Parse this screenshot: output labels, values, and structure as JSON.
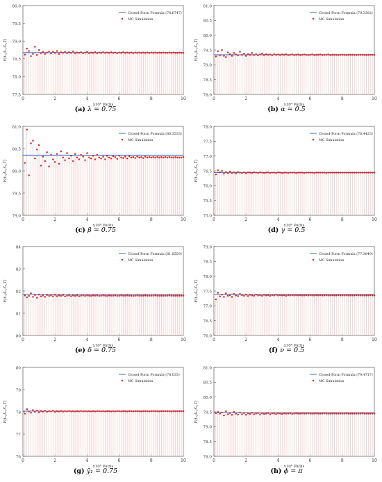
{
  "figure": {
    "xlabel": "x10⁶ Paths",
    "ylabel": "F(t₀,A₀,S₀,T)",
    "legend_line_prefix": "Closed-Form Formula",
    "legend_dots": "MC Simulation",
    "line_color": "#4a78c8",
    "dot_color": "#d42a2a",
    "stem_color": "#e8a6a6",
    "legend_placement": "top-right"
  },
  "chart_data": [
    {
      "type": "scatter",
      "caption": {
        "tag": "(a)",
        "text": "λ = 0.75"
      },
      "closed_form_label": "(78.6747)",
      "closed_form": 78.6747,
      "xlim": [
        0,
        10
      ],
      "xticks": [
        "0",
        "2",
        "4",
        "6",
        "8",
        "10"
      ],
      "ylim": [
        77.5,
        80.0
      ],
      "yticks": [
        "77.5",
        "78.0",
        "78.5",
        "79.0",
        "79.5",
        "80.0"
      ],
      "mc_values": [
        78.62,
        78.79,
        78.72,
        78.58,
        78.64,
        78.84,
        78.61,
        78.75,
        78.66,
        78.7,
        78.64,
        78.68,
        78.71,
        78.65,
        78.7,
        78.67,
        78.72,
        78.64,
        78.69,
        78.67,
        78.7,
        78.66,
        78.69,
        78.67,
        78.71,
        78.66,
        78.68,
        78.67,
        78.69,
        78.66,
        78.68,
        78.7,
        78.66,
        78.68,
        78.67,
        78.69,
        78.66,
        78.68,
        78.67,
        78.69,
        78.67,
        78.68,
        78.67,
        78.69,
        78.67,
        78.68,
        78.66,
        78.68,
        78.67,
        78.69,
        78.67,
        78.68,
        78.67,
        78.68,
        78.66,
        78.68,
        78.67,
        78.68,
        78.67,
        78.68,
        78.67,
        78.68,
        78.67,
        78.68,
        78.67,
        78.68,
        78.67,
        78.68,
        78.67,
        78.68,
        78.67,
        78.67,
        78.68,
        78.67,
        78.68,
        78.67,
        78.67,
        78.68,
        78.67,
        78.67
      ]
    },
    {
      "type": "scatter",
      "caption": {
        "tag": "(b)",
        "text": "α = 0.5"
      },
      "closed_form_label": "(79.3382)",
      "closed_form": 79.3382,
      "xlim": [
        0,
        10
      ],
      "xticks": [
        "0",
        "2",
        "4",
        "6",
        "8",
        "10"
      ],
      "ylim": [
        78.0,
        81.0
      ],
      "yticks": [
        "78.0",
        "78.5",
        "79.0",
        "79.5",
        "80.0",
        "80.5",
        "81.0"
      ],
      "mc_values": [
        79.28,
        79.46,
        79.32,
        79.5,
        79.3,
        79.26,
        79.42,
        79.36,
        79.3,
        79.4,
        79.35,
        79.32,
        79.44,
        79.34,
        79.38,
        79.3,
        79.36,
        79.34,
        79.4,
        79.33,
        79.36,
        79.32,
        79.35,
        79.38,
        79.33,
        79.36,
        79.34,
        79.35,
        79.32,
        79.36,
        79.34,
        79.35,
        79.33,
        79.35,
        79.34,
        79.36,
        79.33,
        79.34,
        79.35,
        79.33,
        79.34,
        79.35,
        79.33,
        79.34,
        79.35,
        79.34,
        79.33,
        79.34,
        79.35,
        79.33,
        79.34,
        79.34,
        79.35,
        79.33,
        79.34,
        79.34,
        79.35,
        79.33,
        79.34,
        79.34,
        79.34,
        79.33,
        79.34,
        79.34,
        79.34,
        79.33,
        79.34,
        79.34,
        79.34,
        79.34,
        79.33,
        79.34,
        79.34,
        79.34,
        79.34,
        79.33,
        79.34,
        79.34,
        79.34,
        79.34
      ]
    },
    {
      "type": "scatter",
      "caption": {
        "tag": "(c)",
        "text": "β = 0.75"
      },
      "closed_form_label": "(80.3533)",
      "closed_form": 80.3533,
      "xlim": [
        0,
        10
      ],
      "xticks": [
        "0",
        "2",
        "4",
        "6",
        "8",
        "10"
      ],
      "ylim": [
        79.0,
        81.0
      ],
      "yticks": [
        "79.0",
        "79.5",
        "80.0",
        "80.5",
        "81.0"
      ],
      "mc_values": [
        80.18,
        80.93,
        79.9,
        80.62,
        80.68,
        80.28,
        80.48,
        80.58,
        80.12,
        80.32,
        80.22,
        80.42,
        80.1,
        80.36,
        80.26,
        80.2,
        80.38,
        80.16,
        80.44,
        80.3,
        80.24,
        80.4,
        80.28,
        80.34,
        80.22,
        80.38,
        80.3,
        80.26,
        80.36,
        80.32,
        80.24,
        80.4,
        80.3,
        80.28,
        80.34,
        80.26,
        80.36,
        80.3,
        80.28,
        80.32,
        80.26,
        80.34,
        80.3,
        80.28,
        80.33,
        80.31,
        80.27,
        80.34,
        80.3,
        80.29,
        80.32,
        80.28,
        80.33,
        80.3,
        80.31,
        80.29,
        80.32,
        80.3,
        80.31,
        80.29,
        80.32,
        80.3,
        80.31,
        80.3,
        80.31,
        80.3,
        80.31,
        80.3,
        80.31,
        80.3,
        80.31,
        80.3,
        80.31,
        80.3,
        80.3,
        80.31,
        80.3,
        80.3,
        80.3,
        80.31
      ]
    },
    {
      "type": "scatter",
      "caption": {
        "tag": "(d)",
        "text": "γ = 0.5"
      },
      "closed_form_label": "(76.4423)",
      "closed_form": 76.4423,
      "xlim": [
        0,
        10
      ],
      "xticks": [
        "0",
        "2",
        "4",
        "6",
        "8",
        "10"
      ],
      "ylim": [
        75.0,
        78.0
      ],
      "yticks": [
        "75.0",
        "75.5",
        "76.0",
        "76.5",
        "77.0",
        "77.5",
        "78.0"
      ],
      "mc_values": [
        76.38,
        76.52,
        76.45,
        76.5,
        76.4,
        76.46,
        76.42,
        76.48,
        76.43,
        76.45,
        76.41,
        76.46,
        76.44,
        76.43,
        76.45,
        76.42,
        76.45,
        76.44,
        76.43,
        76.45,
        76.44,
        76.43,
        76.45,
        76.44,
        76.43,
        76.44,
        76.45,
        76.43,
        76.44,
        76.44,
        76.43,
        76.45,
        76.44,
        76.43,
        76.44,
        76.44,
        76.43,
        76.44,
        76.44,
        76.44,
        76.43,
        76.44,
        76.44,
        76.44,
        76.43,
        76.44,
        76.44,
        76.44,
        76.44,
        76.43,
        76.44,
        76.44,
        76.44,
        76.44,
        76.44,
        76.43,
        76.44,
        76.44,
        76.44,
        76.44,
        76.44,
        76.44,
        76.44,
        76.44,
        76.44,
        76.44,
        76.44,
        76.44,
        76.44,
        76.44,
        76.44,
        76.44,
        76.44,
        76.44,
        76.44,
        76.44,
        76.44,
        76.44,
        76.44,
        76.44
      ]
    },
    {
      "type": "scatter",
      "caption": {
        "tag": "(e)",
        "text": "δ = 0.75"
      },
      "closed_form_label": "(81.8559)",
      "closed_form": 81.8559,
      "xlim": [
        0,
        10
      ],
      "xticks": [
        "0",
        "2",
        "4",
        "6",
        "8",
        "10"
      ],
      "ylim": [
        80,
        84
      ],
      "yticks": [
        "80",
        "81",
        "82",
        "83",
        "84"
      ],
      "mc_values": [
        81.8,
        81.72,
        81.78,
        81.9,
        81.74,
        81.82,
        81.7,
        81.84,
        81.76,
        81.8,
        81.74,
        81.82,
        81.78,
        81.8,
        81.76,
        81.83,
        81.77,
        81.8,
        81.78,
        81.82,
        81.76,
        81.79,
        81.81,
        81.77,
        81.8,
        81.78,
        81.81,
        81.77,
        81.79,
        81.8,
        81.78,
        81.8,
        81.79,
        81.78,
        81.8,
        81.79,
        81.8,
        81.78,
        81.79,
        81.8,
        81.79,
        81.78,
        81.8,
        81.79,
        81.79,
        81.8,
        81.78,
        81.79,
        81.8,
        81.79,
        81.79,
        81.8,
        81.79,
        81.79,
        81.78,
        81.79,
        81.8,
        81.79,
        81.79,
        81.79,
        81.8,
        81.79,
        81.79,
        81.79,
        81.79,
        81.8,
        81.79,
        81.79,
        81.79,
        81.79,
        81.79,
        81.79,
        81.8,
        81.79,
        81.79,
        81.79,
        81.79,
        81.79,
        81.79,
        81.79
      ]
    },
    {
      "type": "scatter",
      "caption": {
        "tag": "(f)",
        "text": "ν = 0.5"
      },
      "closed_form_label": "(77.3849)",
      "closed_form": 77.3849,
      "xlim": [
        0,
        10
      ],
      "xticks": [
        "0",
        "2",
        "4",
        "6",
        "8",
        "10"
      ],
      "ylim": [
        76.0,
        79.0
      ],
      "yticks": [
        "76.0",
        "76.5",
        "77.0",
        "77.5",
        "78.0",
        "78.5",
        "79.0"
      ],
      "mc_values": [
        77.22,
        77.44,
        77.32,
        77.38,
        77.3,
        77.42,
        77.34,
        77.36,
        77.3,
        77.4,
        77.35,
        77.33,
        77.4,
        77.36,
        77.34,
        77.38,
        77.33,
        77.37,
        77.35,
        77.34,
        77.38,
        77.35,
        77.36,
        77.34,
        77.37,
        77.35,
        77.36,
        77.34,
        77.36,
        77.35,
        77.37,
        77.35,
        77.36,
        77.35,
        77.36,
        77.34,
        77.36,
        77.35,
        77.36,
        77.35,
        77.36,
        77.35,
        77.36,
        77.35,
        77.35,
        77.36,
        77.35,
        77.36,
        77.35,
        77.35,
        77.36,
        77.35,
        77.36,
        77.35,
        77.35,
        77.36,
        77.35,
        77.35,
        77.36,
        77.35,
        77.35,
        77.36,
        77.35,
        77.35,
        77.35,
        77.36,
        77.35,
        77.35,
        77.35,
        77.35,
        77.36,
        77.35,
        77.35,
        77.35,
        77.35,
        77.35,
        77.35,
        77.36,
        77.35,
        77.35
      ]
    },
    {
      "type": "scatter",
      "caption": {
        "tag": "(g)",
        "text": "ȳ₁ = 0.75"
      },
      "closed_form_label": "(78.033)",
      "closed_form": 78.033,
      "xlim": [
        0,
        10
      ],
      "xticks": [
        "0",
        "2",
        "4",
        "6",
        "8",
        "10"
      ],
      "ylim": [
        76,
        80
      ],
      "yticks": [
        "76",
        "77",
        "78",
        "79",
        "80"
      ],
      "mc_values": [
        77.92,
        78.12,
        78.02,
        77.96,
        78.08,
        78.0,
        78.06,
        77.98,
        78.04,
        78.01,
        78.05,
        78.0,
        78.03,
        78.02,
        78.05,
        78.0,
        78.03,
        78.02,
        78.04,
        78.01,
        78.03,
        78.02,
        78.04,
        78.02,
        78.03,
        78.02,
        78.03,
        78.02,
        78.04,
        78.02,
        78.03,
        78.02,
        78.03,
        78.02,
        78.03,
        78.02,
        78.03,
        78.03,
        78.02,
        78.03,
        78.02,
        78.03,
        78.03,
        78.02,
        78.03,
        78.02,
        78.03,
        78.03,
        78.02,
        78.03,
        78.03,
        78.02,
        78.03,
        78.03,
        78.02,
        78.03,
        78.03,
        78.03,
        78.02,
        78.03,
        78.03,
        78.03,
        78.02,
        78.03,
        78.03,
        78.03,
        78.03,
        78.02,
        78.03,
        78.03,
        78.03,
        78.03,
        78.03,
        78.02,
        78.03,
        78.03,
        78.03,
        78.03,
        78.03,
        78.03
      ]
    },
    {
      "type": "scatter",
      "caption": {
        "tag": "(h)",
        "text": "ϕ = π"
      },
      "closed_form_label": "(79.4717)",
      "closed_form": 79.4717,
      "xlim": [
        0,
        10
      ],
      "xticks": [
        "0",
        "2",
        "4",
        "6",
        "8",
        "10"
      ],
      "ylim": [
        78.0,
        81.0
      ],
      "yticks": [
        "78.0",
        "78.5",
        "79.0",
        "79.5",
        "80.0",
        "80.5",
        "81.0"
      ],
      "mc_values": [
        79.46,
        79.5,
        79.44,
        79.48,
        79.38,
        79.52,
        79.42,
        79.46,
        79.4,
        79.5,
        79.44,
        79.41,
        79.48,
        79.42,
        79.46,
        79.4,
        79.45,
        79.43,
        79.47,
        79.42,
        79.44,
        79.46,
        79.41,
        79.45,
        79.43,
        79.44,
        79.46,
        79.42,
        79.45,
        79.44,
        79.43,
        79.45,
        79.44,
        79.43,
        79.45,
        79.44,
        79.44,
        79.45,
        79.43,
        79.44,
        79.45,
        79.44,
        79.44,
        79.45,
        79.44,
        79.44,
        79.45,
        79.44,
        79.44,
        79.44,
        79.45,
        79.44,
        79.44,
        79.44,
        79.45,
        79.44,
        79.44,
        79.44,
        79.44,
        79.45,
        79.44,
        79.44,
        79.44,
        79.44,
        79.44,
        79.45,
        79.44,
        79.44,
        79.44,
        79.44,
        79.44,
        79.44,
        79.44,
        79.45,
        79.44,
        79.44,
        79.44,
        79.44,
        79.44,
        79.44
      ]
    }
  ]
}
